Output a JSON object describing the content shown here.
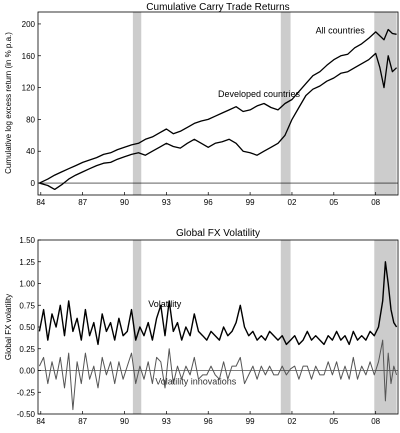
{
  "chart_data": [
    {
      "type": "line",
      "title": "Cumulative Carry Trade Returns",
      "ylabel": "Cumulative log excess return (in % p.a.)",
      "xlim": [
        1983.8,
        2009.6
      ],
      "ylim": [
        -15,
        215
      ],
      "yticks": [
        0,
        40,
        80,
        120,
        160,
        200
      ],
      "xticks": [
        {
          "x": 1984,
          "label": "84"
        },
        {
          "x": 1987,
          "label": "87"
        },
        {
          "x": 1990,
          "label": "90"
        },
        {
          "x": 1993,
          "label": "93"
        },
        {
          "x": 1996,
          "label": "96"
        },
        {
          "x": 1999,
          "label": "99"
        },
        {
          "x": 2002,
          "label": "02"
        },
        {
          "x": 2005,
          "label": "05"
        },
        {
          "x": 2008,
          "label": "08"
        }
      ],
      "recessions": [
        [
          1990.6,
          1991.2
        ],
        [
          2001.2,
          2001.9
        ],
        [
          2007.9,
          2009.5
        ]
      ],
      "zero_line": true,
      "annotations": [
        {
          "text": "All countries",
          "x": 2003.7,
          "y": 188
        },
        {
          "text": "Developed countries",
          "x": 1996.7,
          "y": 108
        }
      ],
      "series": [
        {
          "name": "All countries",
          "x": [
            1983.9,
            1984.5,
            1985.0,
            1985.5,
            1986.0,
            1986.5,
            1987.0,
            1987.5,
            1988.0,
            1988.5,
            1989.0,
            1989.5,
            1990.0,
            1990.5,
            1991.0,
            1991.5,
            1992.0,
            1992.5,
            1993.0,
            1993.5,
            1994.0,
            1994.5,
            1995.0,
            1995.5,
            1996.0,
            1996.5,
            1997.0,
            1997.5,
            1998.0,
            1998.5,
            1999.0,
            1999.5,
            2000.0,
            2000.5,
            2001.0,
            2001.5,
            2002.0,
            2002.5,
            2003.0,
            2003.5,
            2004.0,
            2004.5,
            2005.0,
            2005.5,
            2006.0,
            2006.5,
            2007.0,
            2007.5,
            2008.0,
            2008.3,
            2008.6,
            2008.9,
            2009.2,
            2009.5
          ],
          "y": [
            0,
            5,
            10,
            14,
            18,
            22,
            26,
            29,
            32,
            36,
            38,
            42,
            45,
            48,
            50,
            55,
            58,
            63,
            68,
            62,
            65,
            70,
            75,
            78,
            80,
            84,
            88,
            92,
            96,
            90,
            92,
            97,
            100,
            95,
            92,
            100,
            105,
            115,
            125,
            135,
            140,
            148,
            155,
            160,
            162,
            170,
            175,
            182,
            190,
            185,
            180,
            193,
            188,
            187
          ]
        },
        {
          "name": "Developed countries",
          "x": [
            1983.9,
            1984.5,
            1985.0,
            1985.5,
            1986.0,
            1986.5,
            1987.0,
            1987.5,
            1988.0,
            1988.5,
            1989.0,
            1989.5,
            1990.0,
            1990.5,
            1991.0,
            1991.5,
            1992.0,
            1992.5,
            1993.0,
            1993.5,
            1994.0,
            1994.5,
            1995.0,
            1995.5,
            1996.0,
            1996.5,
            1997.0,
            1997.5,
            1998.0,
            1998.5,
            1999.0,
            1999.5,
            2000.0,
            2000.5,
            2001.0,
            2001.5,
            2002.0,
            2002.5,
            2003.0,
            2003.5,
            2004.0,
            2004.5,
            2005.0,
            2005.5,
            2006.0,
            2006.5,
            2007.0,
            2007.5,
            2008.0,
            2008.3,
            2008.6,
            2008.9,
            2009.2,
            2009.5
          ],
          "y": [
            0,
            -3,
            -8,
            -2,
            5,
            10,
            14,
            18,
            22,
            25,
            26,
            30,
            33,
            36,
            38,
            35,
            40,
            45,
            50,
            46,
            44,
            50,
            55,
            50,
            45,
            50,
            52,
            55,
            50,
            40,
            38,
            35,
            40,
            45,
            50,
            60,
            80,
            95,
            110,
            118,
            122,
            128,
            132,
            138,
            140,
            145,
            150,
            155,
            163,
            145,
            120,
            160,
            140,
            145
          ]
        }
      ]
    },
    {
      "type": "line",
      "title": "Global FX Volatility",
      "ylabel": "Global FX volatility",
      "xlim": [
        1983.8,
        2009.6
      ],
      "ylim": [
        -0.5,
        1.5
      ],
      "yticks": [
        "-0.50",
        "-0.25",
        "0.00",
        "0.25",
        "0.50",
        "0.75",
        "1.00",
        "1.25",
        "1.50"
      ],
      "xticks": [
        {
          "x": 1984,
          "label": "84"
        },
        {
          "x": 1987,
          "label": "87"
        },
        {
          "x": 1990,
          "label": "90"
        },
        {
          "x": 1993,
          "label": "93"
        },
        {
          "x": 1996,
          "label": "96"
        },
        {
          "x": 1999,
          "label": "99"
        },
        {
          "x": 2002,
          "label": "02"
        },
        {
          "x": 2005,
          "label": "05"
        },
        {
          "x": 2008,
          "label": "08"
        }
      ],
      "recessions": [
        [
          1990.6,
          1991.2
        ],
        [
          2001.2,
          2001.9
        ],
        [
          2007.9,
          2009.5
        ]
      ],
      "zero_line": true,
      "annotations": [
        {
          "text": "Volatility",
          "x": 1991.7,
          "y": 0.73
        },
        {
          "text": "Volatility innovations",
          "x": 1992.2,
          "y": -0.16
        }
      ],
      "series": [
        {
          "name": "Volatility",
          "x": [
            1983.9,
            1984.2,
            1984.5,
            1984.8,
            1985.1,
            1985.4,
            1985.7,
            1986.0,
            1986.3,
            1986.6,
            1986.9,
            1987.2,
            1987.5,
            1987.8,
            1988.1,
            1988.4,
            1988.7,
            1989.0,
            1989.3,
            1989.6,
            1989.9,
            1990.2,
            1990.5,
            1990.8,
            1991.1,
            1991.4,
            1991.7,
            1992.0,
            1992.3,
            1992.6,
            1992.9,
            1993.2,
            1993.5,
            1993.8,
            1994.1,
            1994.4,
            1994.7,
            1995.0,
            1995.3,
            1995.6,
            1995.9,
            1996.2,
            1996.5,
            1996.8,
            1997.1,
            1997.4,
            1997.7,
            1998.0,
            1998.3,
            1998.6,
            1998.9,
            1999.2,
            1999.5,
            1999.8,
            2000.1,
            2000.4,
            2000.7,
            2001.0,
            2001.3,
            2001.6,
            2001.9,
            2002.2,
            2002.5,
            2002.8,
            2003.1,
            2003.4,
            2003.7,
            2004.0,
            2004.3,
            2004.6,
            2004.9,
            2005.2,
            2005.5,
            2005.8,
            2006.1,
            2006.4,
            2006.7,
            2007.0,
            2007.3,
            2007.6,
            2007.9,
            2008.2,
            2008.5,
            2008.7,
            2008.9,
            2009.1,
            2009.3,
            2009.5
          ],
          "y": [
            0.45,
            0.7,
            0.35,
            0.65,
            0.5,
            0.75,
            0.4,
            0.8,
            0.45,
            0.6,
            0.35,
            0.7,
            0.4,
            0.55,
            0.3,
            0.65,
            0.45,
            0.55,
            0.35,
            0.6,
            0.4,
            0.45,
            0.7,
            0.35,
            0.5,
            0.4,
            0.55,
            0.35,
            0.6,
            0.75,
            0.4,
            0.8,
            0.45,
            0.55,
            0.35,
            0.5,
            0.4,
            0.65,
            0.45,
            0.4,
            0.35,
            0.45,
            0.4,
            0.35,
            0.5,
            0.4,
            0.45,
            0.55,
            0.75,
            0.5,
            0.4,
            0.45,
            0.35,
            0.4,
            0.35,
            0.45,
            0.4,
            0.35,
            0.4,
            0.3,
            0.35,
            0.4,
            0.3,
            0.35,
            0.45,
            0.35,
            0.4,
            0.35,
            0.3,
            0.4,
            0.35,
            0.45,
            0.35,
            0.4,
            0.3,
            0.45,
            0.35,
            0.4,
            0.35,
            0.45,
            0.4,
            0.5,
            0.8,
            1.25,
            1.0,
            0.7,
            0.55,
            0.5
          ]
        },
        {
          "name": "Volatility innovations",
          "x": [
            1983.9,
            1984.2,
            1984.5,
            1984.8,
            1985.1,
            1985.4,
            1985.7,
            1986.0,
            1986.3,
            1986.6,
            1986.9,
            1987.2,
            1987.5,
            1987.8,
            1988.1,
            1988.4,
            1988.7,
            1989.0,
            1989.3,
            1989.6,
            1989.9,
            1990.2,
            1990.5,
            1990.8,
            1991.1,
            1991.4,
            1991.7,
            1992.0,
            1992.3,
            1992.6,
            1992.9,
            1993.2,
            1993.5,
            1993.8,
            1994.1,
            1994.4,
            1994.7,
            1995.0,
            1995.3,
            1995.6,
            1995.9,
            1996.2,
            1996.5,
            1996.8,
            1997.1,
            1997.4,
            1997.7,
            1998.0,
            1998.3,
            1998.6,
            1998.9,
            1999.2,
            1999.5,
            1999.8,
            2000.1,
            2000.4,
            2000.7,
            2001.0,
            2001.3,
            2001.6,
            2001.9,
            2002.2,
            2002.5,
            2002.8,
            2003.1,
            2003.4,
            2003.7,
            2004.0,
            2004.3,
            2004.6,
            2004.9,
            2005.2,
            2005.5,
            2005.8,
            2006.1,
            2006.4,
            2006.7,
            2007.0,
            2007.3,
            2007.6,
            2007.9,
            2008.2,
            2008.5,
            2008.7,
            2008.9,
            2009.1,
            2009.3,
            2009.5
          ],
          "y": [
            0.05,
            0.15,
            -0.15,
            0.1,
            -0.1,
            0.15,
            -0.2,
            0.2,
            -0.45,
            0.1,
            -0.15,
            0.2,
            -0.1,
            0.05,
            -0.2,
            0.15,
            -0.05,
            0.1,
            -0.15,
            0.1,
            -0.1,
            0.05,
            0.2,
            -0.15,
            0.05,
            -0.1,
            0.1,
            -0.15,
            0.15,
            0.1,
            -0.2,
            0.25,
            -0.15,
            0.05,
            -0.1,
            0.05,
            -0.05,
            0.15,
            -0.1,
            -0.05,
            -0.05,
            0.05,
            -0.05,
            -0.1,
            0.1,
            -0.1,
            0.05,
            0.05,
            0.15,
            -0.15,
            -0.05,
            0.05,
            -0.1,
            0.05,
            -0.05,
            0.05,
            -0.05,
            -0.05,
            0.05,
            -0.05,
            0.02,
            0.05,
            -0.1,
            0.05,
            0.05,
            -0.1,
            0.05,
            -0.05,
            -0.05,
            0.1,
            -0.05,
            0.1,
            -0.1,
            0.05,
            -0.1,
            0.15,
            -0.1,
            0.05,
            -0.05,
            0.1,
            -0.05,
            0.1,
            0.35,
            -0.35,
            0.2,
            -0.15,
            0.05,
            -0.05
          ]
        }
      ]
    }
  ]
}
